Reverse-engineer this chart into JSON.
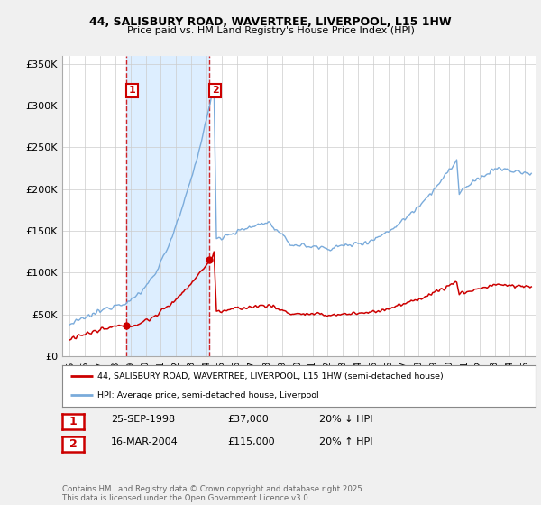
{
  "title_line1": "44, SALISBURY ROAD, WAVERTREE, LIVERPOOL, L15 1HW",
  "title_line2": "Price paid vs. HM Land Registry's House Price Index (HPI)",
  "ylim": [
    0,
    360000
  ],
  "yticks": [
    0,
    50000,
    100000,
    150000,
    200000,
    250000,
    300000,
    350000
  ],
  "ytick_labels": [
    "£0",
    "£50K",
    "£100K",
    "£150K",
    "£200K",
    "£250K",
    "£300K",
    "£350K"
  ],
  "sale1_date_num": 1998.73,
  "sale1_price": 37000,
  "sale1_label": "1",
  "sale2_date_num": 2004.21,
  "sale2_price": 115000,
  "sale2_label": "2",
  "red_color": "#cc0000",
  "blue_color": "#7aabdb",
  "shade_color": "#ddeeff",
  "background_color": "#f0f0f0",
  "plot_bg_color": "#ffffff",
  "legend_label_red": "44, SALISBURY ROAD, WAVERTREE, LIVERPOOL, L15 1HW (semi-detached house)",
  "legend_label_blue": "HPI: Average price, semi-detached house, Liverpool",
  "table_row1": [
    "1",
    "25-SEP-1998",
    "£37,000",
    "20% ↓ HPI"
  ],
  "table_row2": [
    "2",
    "16-MAR-2004",
    "£115,000",
    "20% ↑ HPI"
  ],
  "footer_text": "Contains HM Land Registry data © Crown copyright and database right 2025.\nThis data is licensed under the Open Government Licence v3.0.",
  "xmin": 1994.5,
  "xmax": 2025.7
}
